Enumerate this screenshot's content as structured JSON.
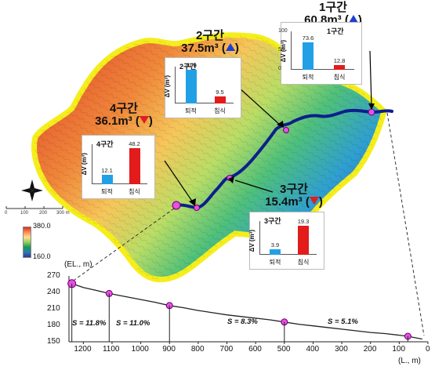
{
  "zones": [
    {
      "id": 1,
      "title": "1구간",
      "volume": "60.8m³",
      "trend": "up",
      "chart": {
        "title": "1구간",
        "ymax": 100,
        "ticks": [
          "100",
          "50",
          "0"
        ],
        "bars": [
          {
            "cat": "퇴적",
            "value": 73.6,
            "label": "73.6",
            "color": "#22a0e6"
          },
          {
            "cat": "침식",
            "value": 12.8,
            "label": "12.8",
            "color": "#e21b1b"
          }
        ]
      }
    },
    {
      "id": 2,
      "title": "2구간",
      "volume": "37.5m³",
      "trend": "up",
      "chart": {
        "title": "2구간",
        "ymax": 50,
        "ticks": [],
        "bars": [
          {
            "cat": "퇴적",
            "value": 47.0,
            "label": "47.0",
            "color": "#22a0e6"
          },
          {
            "cat": "침식",
            "value": 9.5,
            "label": "9.5",
            "color": "#e21b1b"
          }
        ]
      }
    },
    {
      "id": 3,
      "title": "3구간",
      "volume": "15.4m³",
      "trend": "down",
      "chart": {
        "title": "3구간",
        "ymax": 22,
        "ticks": [],
        "bars": [
          {
            "cat": "퇴적",
            "value": 3.9,
            "label": "3.9",
            "color": "#22a0e6"
          },
          {
            "cat": "침식",
            "value": 19.3,
            "label": "19.3",
            "color": "#e21b1b"
          }
        ]
      }
    },
    {
      "id": 4,
      "title": "4구간",
      "volume": "36.1m³",
      "trend": "down",
      "chart": {
        "title": "4구간",
        "ymax": 52,
        "ticks": [],
        "bars": [
          {
            "cat": "퇴적",
            "value": 12.1,
            "label": "12.1",
            "color": "#22a0e6"
          },
          {
            "cat": "침식",
            "value": 48.2,
            "label": "48.2",
            "color": "#e21b1b"
          }
        ]
      }
    }
  ],
  "chart_ylabel": "ΔV (m³)",
  "legend": {
    "max": "380.0",
    "min": "160.0"
  },
  "scalebar": [
    "0",
    "100",
    "200",
    "300 m"
  ],
  "profile": {
    "ylabel": "(EL., m)",
    "xlabel": "(L., m)",
    "y_ticks": [
      "270",
      "240",
      "210",
      "180",
      "150"
    ],
    "x_ticks": [
      "1200",
      "1100",
      "1000",
      "900",
      "800",
      "700",
      "600",
      "500",
      "400",
      "300",
      "200",
      "100",
      "0"
    ],
    "slopes": [
      "S = 11.8%",
      "S = 11.0%",
      "S = 8.3%",
      "S = 5.1%"
    ]
  },
  "chart_data": {
    "type": "line",
    "xlabel": "(L., m)",
    "ylabel": "(EL., m)",
    "xlim": [
      1250,
      0
    ],
    "ylim": [
      150,
      270
    ],
    "x": [
      1240,
      1200,
      1150,
      1110,
      1050,
      1000,
      950,
      900,
      850,
      800,
      750,
      700,
      650,
      600,
      550,
      500,
      450,
      400,
      350,
      300,
      250,
      200,
      150,
      100,
      70,
      40,
      20
    ],
    "y": [
      256,
      249,
      243,
      238,
      232,
      227,
      222,
      216,
      212,
      207,
      203,
      199,
      196,
      193,
      190,
      186,
      182,
      179,
      176,
      173,
      170,
      167,
      165,
      162,
      160,
      157,
      155
    ],
    "markers": [
      {
        "x": 1240,
        "y": 256
      },
      {
        "x": 1110,
        "y": 238
      },
      {
        "x": 900,
        "y": 216
      },
      {
        "x": 500,
        "y": 186
      },
      {
        "x": 70,
        "y": 160
      }
    ]
  }
}
